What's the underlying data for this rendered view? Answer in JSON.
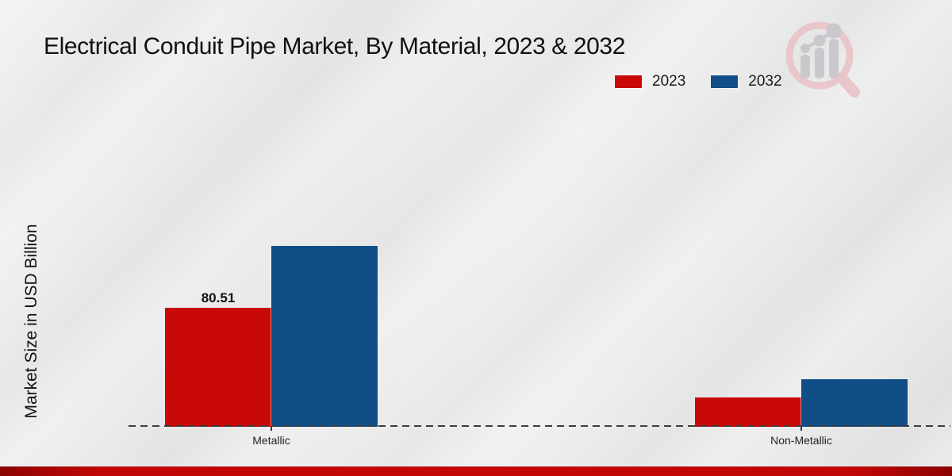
{
  "title": "Electrical Conduit Pipe Market, By Material, 2023 & 2032",
  "y_axis_label": "Market Size in USD Billion",
  "colors": {
    "series_2023": "#c90808",
    "series_2032": "#114e87",
    "footer_strip": "#c00606",
    "background": "#eaeaea",
    "axis": "#3c3c3c"
  },
  "watermark_icon": "magnifier-bar-chart-logo",
  "chart_data": {
    "type": "bar",
    "title": "Electrical Conduit Pipe Market, By Material, 2023 & 2032",
    "xlabel": "",
    "ylabel": "Market Size in USD Billion",
    "categories": [
      "Metallic",
      "Non-Metallic"
    ],
    "series": [
      {
        "name": "2023",
        "color": "#c90808",
        "values": [
          80.51,
          19.9
        ],
        "data_labels": [
          "80.51",
          ""
        ]
      },
      {
        "name": "2032",
        "color": "#114e87",
        "values": [
          122.4,
          32.2
        ],
        "data_labels": [
          "",
          ""
        ]
      }
    ],
    "ylim": [
      0,
      140
    ],
    "grid": false,
    "legend_position": "top-right",
    "x_axis_style": "dashed",
    "y_axis_ticks_visible": false
  }
}
